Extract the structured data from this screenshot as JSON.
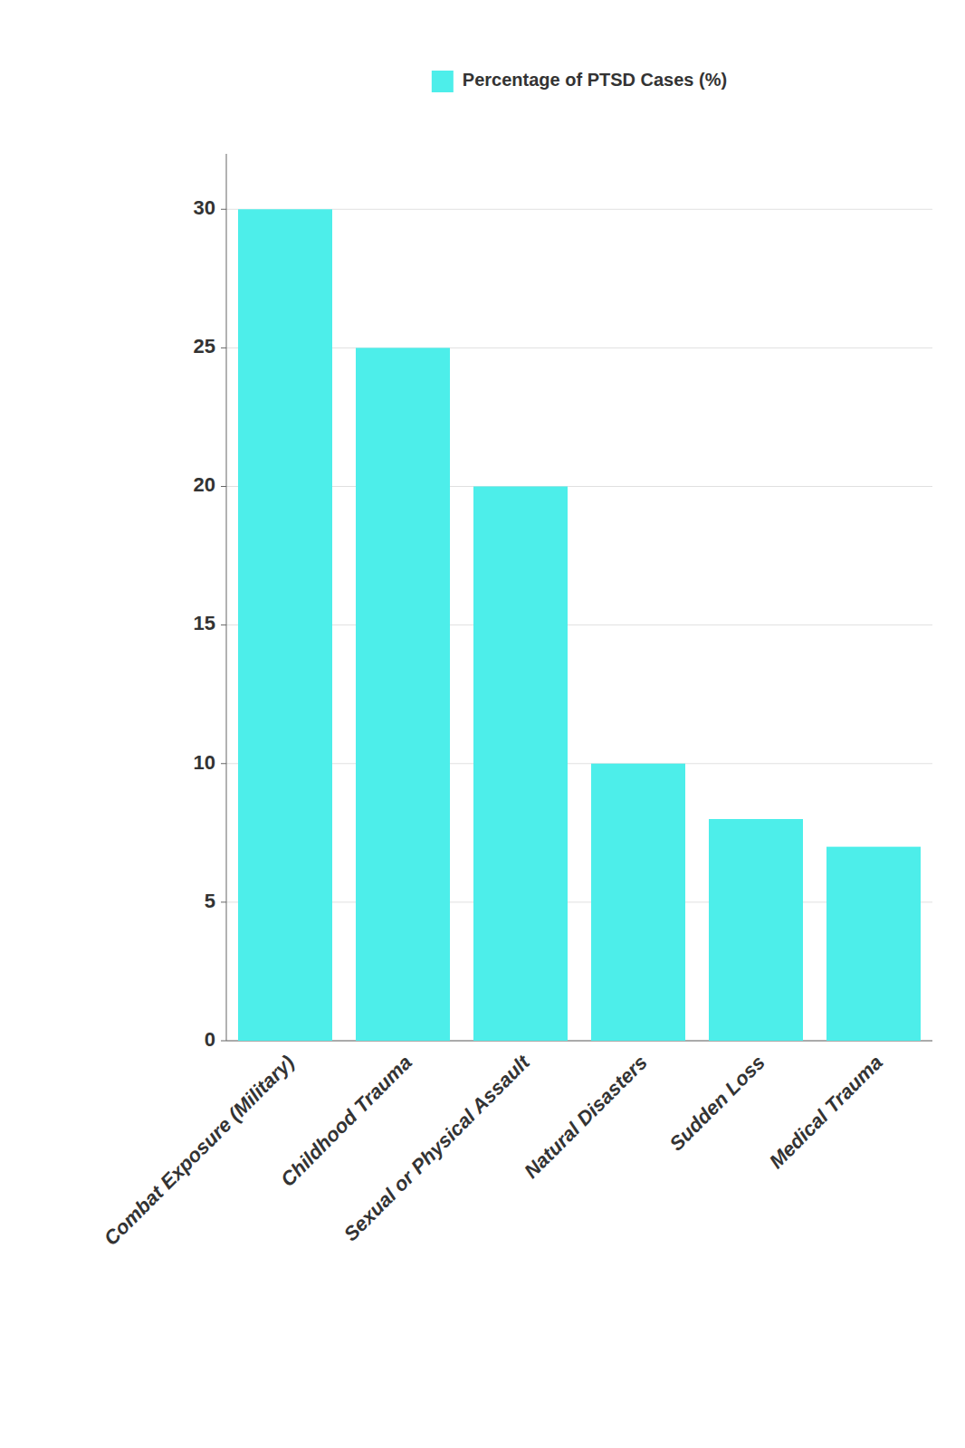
{
  "chart_data": {
    "type": "bar",
    "categories": [
      "Combat Exposure (Military)",
      "Childhood Trauma",
      "Sexual or Physical Assault",
      "Natural Disasters",
      "Sudden Loss",
      "Medical Trauma"
    ],
    "series": [
      {
        "name": "Percentage of PTSD Cases (%)",
        "color": "#4DEEEA",
        "values": [
          30,
          25,
          20,
          10,
          8,
          7
        ]
      }
    ],
    "ylim": [
      0,
      32
    ],
    "yticks": [
      0,
      5,
      10,
      15,
      20,
      25,
      30
    ],
    "grid": true,
    "legend": "top"
  }
}
